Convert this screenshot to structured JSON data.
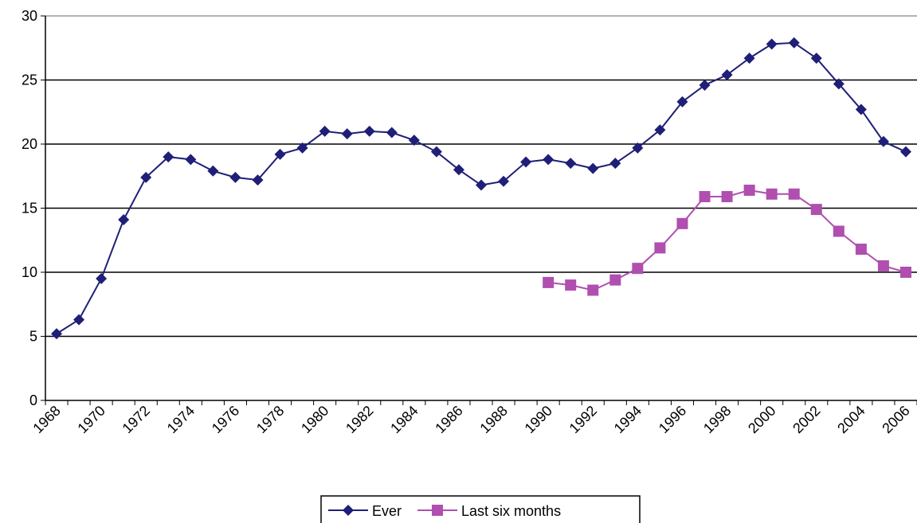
{
  "chart_data": {
    "type": "line",
    "categories": [
      "1968",
      null,
      "1970",
      null,
      "1972",
      null,
      "1974",
      null,
      "1976",
      null,
      "1978",
      null,
      "1980",
      null,
      "1982",
      null,
      "1984",
      null,
      "1986",
      null,
      "1988",
      null,
      "1990",
      null,
      "1992",
      null,
      "1994",
      null,
      "1996",
      null,
      "1998",
      null,
      "2000",
      null,
      "2002",
      null,
      "2004",
      null,
      "2006"
    ],
    "series": [
      {
        "name": "Ever",
        "color": "#1f1f78",
        "marker": "diamond",
        "values": [
          5.2,
          6.3,
          9.5,
          14.1,
          17.4,
          19.0,
          18.8,
          17.9,
          17.4,
          17.2,
          19.2,
          19.7,
          21.0,
          20.8,
          21.0,
          20.9,
          20.3,
          19.4,
          18.0,
          16.8,
          17.1,
          18.6,
          18.8,
          18.5,
          18.1,
          18.5,
          19.7,
          21.1,
          23.3,
          24.6,
          25.4,
          26.7,
          27.8,
          27.9,
          26.7,
          24.7,
          22.7,
          20.2,
          19.4
        ]
      },
      {
        "name": "Last six months",
        "color": "#b04fb0",
        "marker": "square",
        "values": [
          null,
          null,
          null,
          null,
          null,
          null,
          null,
          null,
          null,
          null,
          null,
          null,
          null,
          null,
          null,
          null,
          null,
          null,
          null,
          null,
          null,
          null,
          9.2,
          9.0,
          8.6,
          9.4,
          10.3,
          11.9,
          13.8,
          15.9,
          15.9,
          16.4,
          16.1,
          16.1,
          14.9,
          13.2,
          11.8,
          10.5,
          10.0
        ]
      }
    ],
    "ylim": [
      0,
      30
    ],
    "yticks": [
      0,
      5,
      10,
      15,
      20,
      25,
      30
    ],
    "grid": true,
    "legend": "bottom"
  }
}
